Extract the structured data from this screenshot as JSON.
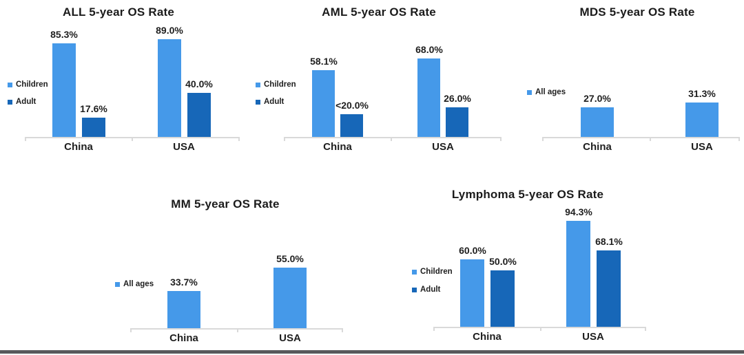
{
  "colors": {
    "bar_light_blue": "#4599E9",
    "bar_dark_blue": "#1767B8",
    "axis_gray": "#D9D9D9",
    "text_dark": "#1E1E1E",
    "bottom_bar_gray": "#58595B"
  },
  "chart_data": [
    {
      "type": "bar",
      "title": "ALL 5-year OS Rate",
      "categories": [
        "China",
        "USA"
      ],
      "series": [
        {
          "name": "Children",
          "color": "#4599E9",
          "values": [
            85.3,
            89.0
          ],
          "labels": [
            "85.3%",
            "89.0%"
          ]
        },
        {
          "name": "Adult",
          "color": "#1767B8",
          "values": [
            17.6,
            40.0
          ],
          "labels": [
            "17.6%",
            "40.0%"
          ]
        }
      ],
      "ylim": [
        0,
        100
      ],
      "grid": false,
      "legend_position": "left",
      "value_label_format": "percent",
      "y_axis_visible": false
    },
    {
      "type": "bar",
      "title": "AML 5-year OS Rate",
      "categories": [
        "China",
        "USA"
      ],
      "series": [
        {
          "name": "Children",
          "color": "#4599E9",
          "values": [
            58.1,
            68.0
          ],
          "labels": [
            "58.1%",
            "68.0%"
          ]
        },
        {
          "name": "Adult",
          "color": "#1767B8",
          "values": [
            20.0,
            26.0
          ],
          "labels": [
            "<20.0%",
            "26.0%"
          ]
        }
      ],
      "ylim": [
        0,
        100
      ],
      "grid": false,
      "legend_position": "left",
      "value_label_format": "percent",
      "y_axis_visible": false
    },
    {
      "type": "bar",
      "title": "MDS 5-year OS Rate",
      "categories": [
        "China",
        "USA"
      ],
      "series": [
        {
          "name": "All ages",
          "color": "#4599E9",
          "values": [
            27.0,
            31.3
          ],
          "labels": [
            "27.0%",
            "31.3%"
          ]
        }
      ],
      "ylim": [
        0,
        100
      ],
      "grid": false,
      "legend_position": "left",
      "value_label_format": "percent",
      "y_axis_visible": false
    },
    {
      "type": "bar",
      "title": "MM 5-year OS Rate",
      "categories": [
        "China",
        "USA"
      ],
      "series": [
        {
          "name": "All ages",
          "color": "#4599E9",
          "values": [
            33.7,
            55.0
          ],
          "labels": [
            "33.7%",
            "55.0%"
          ]
        }
      ],
      "ylim": [
        0,
        100
      ],
      "grid": false,
      "legend_position": "left",
      "value_label_format": "percent",
      "y_axis_visible": false
    },
    {
      "type": "bar",
      "title": "Lymphoma 5-year OS Rate",
      "categories": [
        "China",
        "USA"
      ],
      "series": [
        {
          "name": "Children",
          "color": "#4599E9",
          "values": [
            60.0,
            94.3
          ],
          "labels": [
            "60.0%",
            "94.3%"
          ]
        },
        {
          "name": "Adult",
          "color": "#1767B8",
          "values": [
            50.0,
            68.1
          ],
          "labels": [
            "50.0%",
            "68.1%"
          ]
        }
      ],
      "ylim": [
        0,
        100
      ],
      "grid": false,
      "legend_position": "left",
      "value_label_format": "percent",
      "y_axis_visible": false
    }
  ]
}
